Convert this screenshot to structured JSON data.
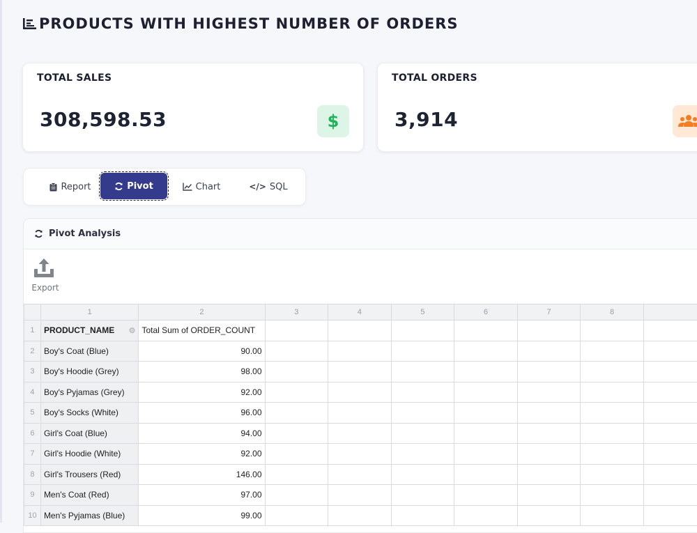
{
  "page": {
    "title": "PRODUCTS WITH HIGHEST NUMBER OF ORDERS",
    "title_icon": "bar-list-icon"
  },
  "kpis": {
    "sales": {
      "label": "TOTAL SALES",
      "value": "308,598.53",
      "icon": "dollar-icon",
      "icon_glyph": "$",
      "accent": "#1fb35b"
    },
    "orders": {
      "label": "TOTAL ORDERS",
      "value": "3,914",
      "icon": "users-icon",
      "accent": "#f57c1f"
    }
  },
  "tabs": [
    {
      "label": "Report",
      "icon": "clipboard-icon"
    },
    {
      "label": "Pivot",
      "icon": "refresh-icon",
      "active": true
    },
    {
      "label": "Chart",
      "icon": "line-chart-icon"
    },
    {
      "label": "SQL",
      "icon": "code-icon",
      "icon_glyph": "</>"
    }
  ],
  "pivot": {
    "title": "Pivot Analysis",
    "export_label": "Export",
    "column_numbers": [
      "1",
      "2",
      "3",
      "4",
      "5",
      "6",
      "7",
      "8",
      ""
    ],
    "headers": [
      "PRODUCT_NAME",
      "Total Sum of ORDER_COUNT"
    ],
    "rows": [
      {
        "num": "2",
        "product": "Boy's Coat (Blue)",
        "value": "90.00"
      },
      {
        "num": "3",
        "product": "Boy's Hoodie (Grey)",
        "value": "98.00"
      },
      {
        "num": "4",
        "product": "Boy's Pyjamas (Grey)",
        "value": "92.00"
      },
      {
        "num": "5",
        "product": "Boy's Socks (White)",
        "value": "96.00"
      },
      {
        "num": "6",
        "product": "Girl's Coat (Blue)",
        "value": "94.00"
      },
      {
        "num": "7",
        "product": "Girl's Hoodie (White)",
        "value": "92.00"
      },
      {
        "num": "8",
        "product": "Girl's Trousers (Red)",
        "value": "146.00"
      },
      {
        "num": "9",
        "product": "Men's Coat (Red)",
        "value": "97.00"
      },
      {
        "num": "10",
        "product": "Men's Pyjamas (Blue)",
        "value": "99.00"
      }
    ],
    "header_row_num": "1"
  },
  "colors": {
    "active_tab": "#343b8c",
    "background": "#f6f7fb"
  }
}
